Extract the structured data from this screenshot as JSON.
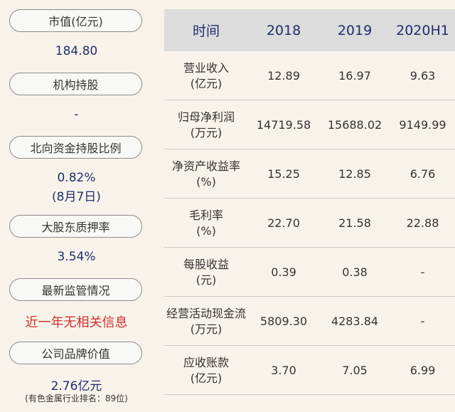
{
  "left": [
    {
      "label": "市值(亿元)",
      "value": "184.80"
    },
    {
      "label": "机构持股",
      "value": "-"
    },
    {
      "label": "北向资金持股比例",
      "value": "0.82%",
      "value2": "(8月7日)"
    },
    {
      "label": "大股东质押率",
      "value": "3.54%"
    },
    {
      "label": "最新监管情况",
      "value": "近一年无相关信息"
    },
    {
      "label": "公司品牌价值",
      "value": "2.76亿元",
      "note": "(有色金属行业排名：89位)"
    }
  ],
  "table": {
    "headers": [
      "时间",
      "2018",
      "2019",
      "2020H1"
    ],
    "rows": [
      {
        "label1": "营业收入",
        "label2": "(亿元)",
        "values": [
          "12.89",
          "16.97",
          "9.63"
        ]
      },
      {
        "label1": "归母净利润",
        "label2": "(万元)",
        "values": [
          "14719.58",
          "15688.02",
          "9149.99"
        ]
      },
      {
        "label1": "净资产收益率",
        "label2": "(%)",
        "values": [
          "15.25",
          "12.85",
          "6.76"
        ]
      },
      {
        "label1": "毛利率",
        "label2": "(%)",
        "values": [
          "22.70",
          "21.58",
          "22.88"
        ]
      },
      {
        "label1": "每股收益",
        "label2": "(元)",
        "values": [
          "0.39",
          "0.38",
          "-"
        ]
      },
      {
        "label1": "经营活动现金流",
        "label2": "(万元)",
        "values": [
          "5809.30",
          "4283.84",
          "-"
        ]
      },
      {
        "label1": "应收账款",
        "label2": "(亿元)",
        "values": [
          "3.70",
          "7.05",
          "6.99"
        ]
      }
    ]
  }
}
